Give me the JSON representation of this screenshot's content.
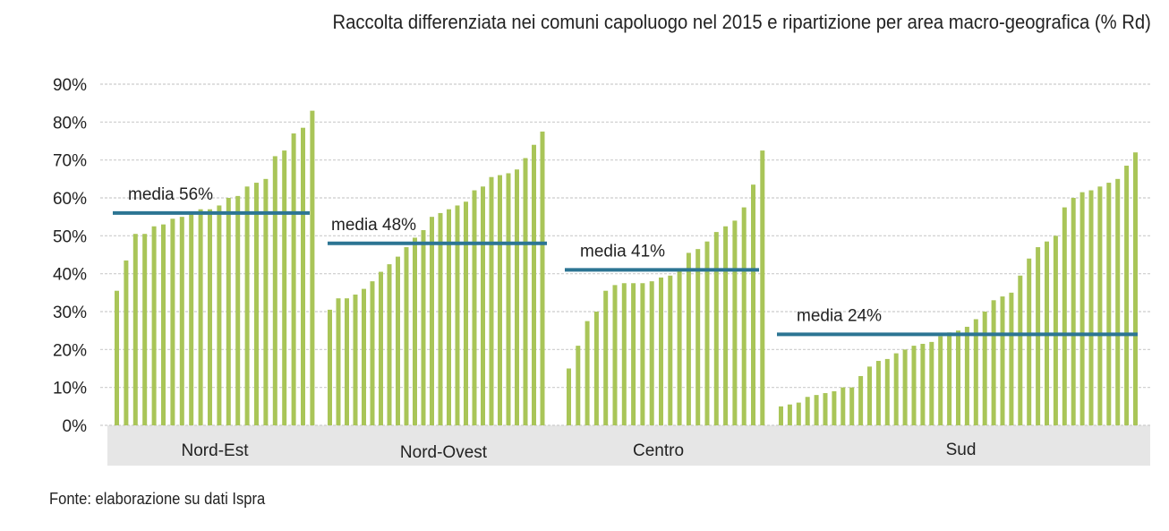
{
  "title": "Raccolta differenziata nei comuni capoluogo nel 2015 e ripartizione per area macro-geografica (% Rd)",
  "source": "Fonte: elaborazione su dati Ispra",
  "colors": {
    "bar": "#a9c558",
    "mean_line": "#2c7593",
    "grid": "#cccccc",
    "band": "#e6e6e6"
  },
  "chart_data": {
    "type": "bar",
    "ylim": [
      0,
      90
    ],
    "yticks": [
      0,
      10,
      20,
      30,
      40,
      50,
      60,
      70,
      80,
      90
    ],
    "ytick_labels": [
      "0%",
      "10%",
      "20%",
      "30%",
      "40%",
      "50%",
      "60%",
      "70%",
      "80%",
      "90%"
    ],
    "grid": true,
    "groups": [
      {
        "name": "Nord-Est",
        "mean": 56,
        "mean_label": "media 56%",
        "values": [
          35.5,
          43.5,
          50.5,
          50.5,
          52.5,
          53,
          54.5,
          55,
          56,
          57,
          57,
          58,
          60,
          60.5,
          63,
          64,
          65,
          71,
          72.5,
          77,
          78.5,
          83
        ]
      },
      {
        "name": "Nord-Ovest",
        "mean": 48,
        "mean_label": "media 48%",
        "values": [
          30.5,
          33.5,
          33.5,
          34.5,
          36,
          38,
          40.5,
          42.5,
          44.5,
          47,
          49.5,
          51.5,
          55,
          56,
          57,
          58,
          59,
          62,
          63,
          65.5,
          66,
          66.5,
          67.5,
          70.5,
          74,
          77.5
        ]
      },
      {
        "name": "Centro",
        "mean": 41,
        "mean_label": "media 41%",
        "values": [
          15,
          21,
          27.5,
          30,
          35.5,
          37,
          37.5,
          37.5,
          37.5,
          38,
          39,
          39.5,
          41,
          45.5,
          46.5,
          48.5,
          51,
          52.5,
          54,
          57.5,
          63.5,
          72.5
        ]
      },
      {
        "name": "Sud",
        "mean": 24,
        "mean_label": "media 24%",
        "values": [
          5,
          5.5,
          6,
          7.5,
          8,
          8.5,
          9,
          10,
          10,
          13,
          15.5,
          17,
          17.5,
          19,
          20,
          21,
          21.5,
          22,
          23.5,
          24.5,
          25,
          26,
          28,
          30,
          33,
          34,
          35,
          39.5,
          44,
          47,
          48.5,
          50,
          57.5,
          60,
          61.5,
          62,
          63,
          64,
          65,
          68.5,
          72
        ]
      }
    ]
  }
}
